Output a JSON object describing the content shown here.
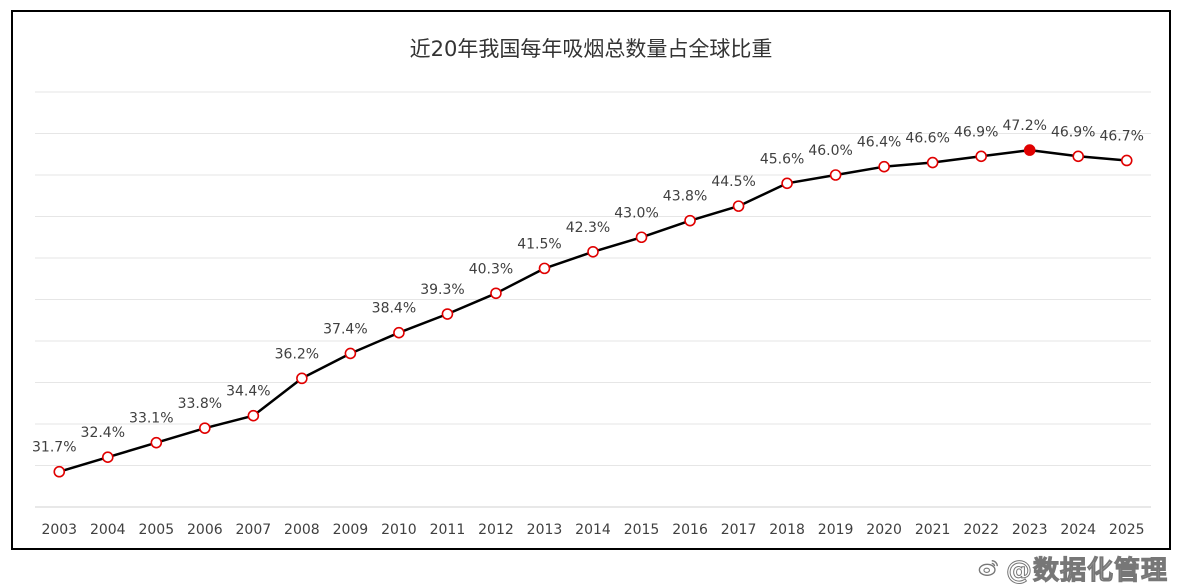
{
  "watermark": {
    "text": "@数据化管理",
    "icon": "weibo-icon"
  },
  "colors": {
    "line": "#000000",
    "marker_stroke": "#e00000",
    "marker_highlight": "#e00000",
    "grid": "#e6e6e6"
  },
  "chart_data": {
    "type": "line",
    "title": "近20年我国每年吸烟总数量占全球比重",
    "xlabel": "",
    "ylabel": "",
    "ylim": [
      30,
      50
    ],
    "grid": true,
    "y_axis_labels_shown": false,
    "categories": [
      "2003",
      "2004",
      "2005",
      "2006",
      "2007",
      "2008",
      "2009",
      "2010",
      "2011",
      "2012",
      "2013",
      "2014",
      "2015",
      "2016",
      "2017",
      "2018",
      "2019",
      "2020",
      "2021",
      "2022",
      "2023",
      "2024",
      "2025"
    ],
    "values": [
      31.7,
      32.4,
      33.1,
      33.8,
      34.4,
      36.2,
      37.4,
      38.4,
      39.3,
      40.3,
      41.5,
      42.3,
      43.0,
      43.8,
      44.5,
      45.6,
      46.0,
      46.4,
      46.6,
      46.9,
      47.2,
      46.9,
      46.7
    ],
    "data_labels": [
      "31.7%",
      "32.4%",
      "33.1%",
      "33.8%",
      "34.4%",
      "36.2%",
      "37.4%",
      "38.4%",
      "39.3%",
      "40.3%",
      "41.5%",
      "42.3%",
      "43.0%",
      "43.8%",
      "44.5%",
      "45.6%",
      "46.0%",
      "46.4%",
      "46.6%",
      "46.9%",
      "47.2%",
      "46.9%",
      "46.7%"
    ],
    "highlight": "2023"
  }
}
